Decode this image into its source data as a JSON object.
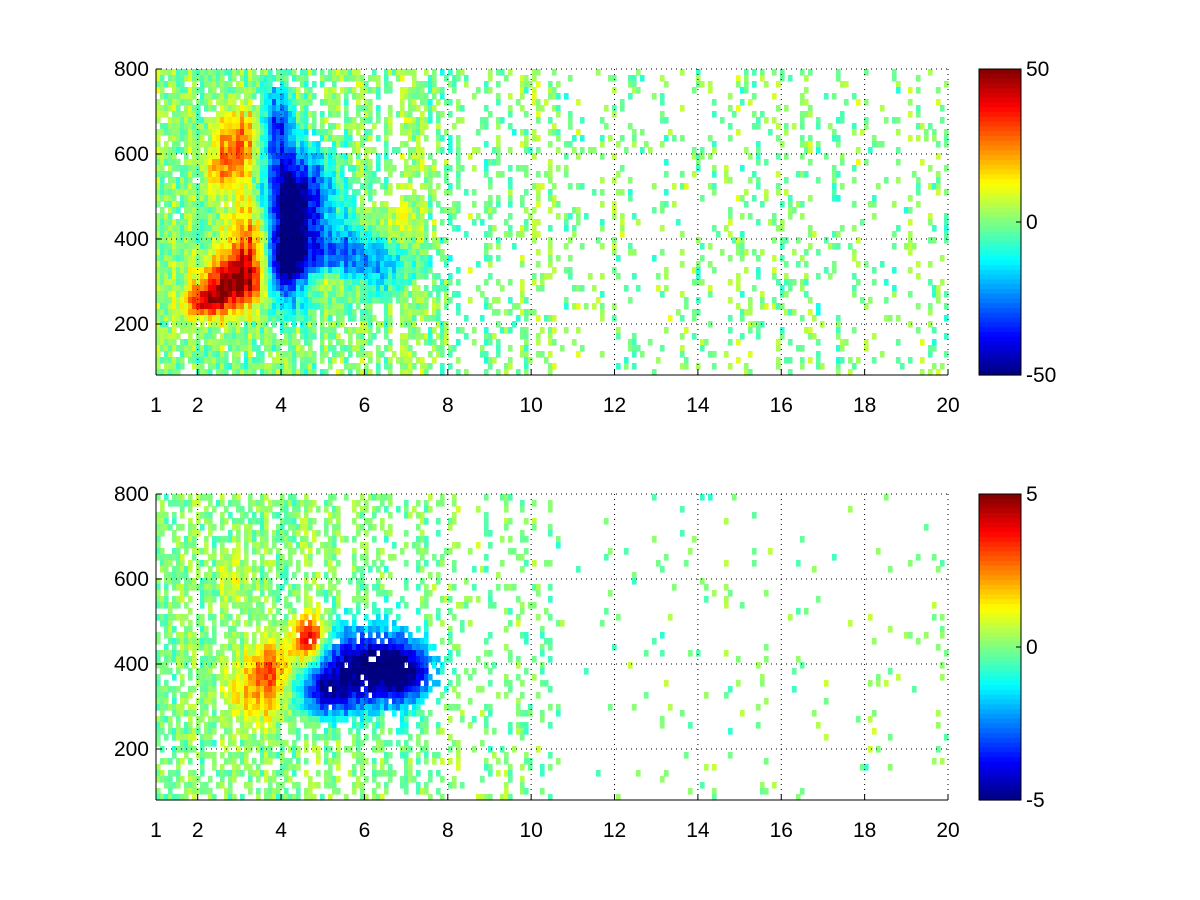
{
  "chart_data": [
    {
      "type": "heatmap",
      "panel": "top",
      "xlim": [
        1,
        20
      ],
      "ylim": [
        80,
        800
      ],
      "x_ticks": [
        1,
        2,
        4,
        6,
        8,
        10,
        12,
        14,
        16,
        18,
        20
      ],
      "y_ticks": [
        200,
        400,
        600,
        800
      ],
      "x_tick_labels": [
        "1",
        "2",
        "4",
        "6",
        "8",
        "10",
        "12",
        "14",
        "16",
        "18",
        "20"
      ],
      "y_tick_labels": [
        "200",
        "400",
        "600",
        "800"
      ],
      "grid": true,
      "grid_style": "dotted",
      "colormap": "jet",
      "colorbar": {
        "range": [
          -50,
          50
        ],
        "ticks": [
          50,
          0,
          -50
        ],
        "tick_labels": [
          "50",
          "0",
          "-50"
        ]
      },
      "blobs": [
        {
          "x": 2.9,
          "y": 300,
          "sx": 0.55,
          "sy": 45,
          "v": 48
        },
        {
          "x": 2.2,
          "y": 250,
          "sx": 0.35,
          "sy": 25,
          "v": 35
        },
        {
          "x": 3.3,
          "y": 400,
          "sx": 0.4,
          "sy": 60,
          "v": 30
        },
        {
          "x": 3.0,
          "y": 630,
          "sx": 0.4,
          "sy": 60,
          "v": 26
        },
        {
          "x": 2.6,
          "y": 560,
          "sx": 0.35,
          "sy": 40,
          "v": 15
        },
        {
          "x": 4.1,
          "y": 330,
          "sx": 0.35,
          "sy": 60,
          "v": -50
        },
        {
          "x": 4.2,
          "y": 470,
          "sx": 0.4,
          "sy": 80,
          "v": -45
        },
        {
          "x": 3.9,
          "y": 660,
          "sx": 0.25,
          "sy": 70,
          "v": -35
        },
        {
          "x": 5.2,
          "y": 350,
          "sx": 0.8,
          "sy": 60,
          "v": -25
        },
        {
          "x": 4.7,
          "y": 520,
          "sx": 0.6,
          "sy": 70,
          "v": -20
        },
        {
          "x": 5.0,
          "y": 300,
          "sx": 0.7,
          "sy": 30,
          "v": 22
        },
        {
          "x": 6.3,
          "y": 350,
          "sx": 0.8,
          "sy": 50,
          "v": -15
        },
        {
          "x": 6.6,
          "y": 420,
          "sx": 0.5,
          "sy": 40,
          "v": 12
        }
      ],
      "noise": {
        "amplitude": 15,
        "fill_density": [
          0.85,
          0.7,
          0.45,
          0.25
        ]
      }
    },
    {
      "type": "heatmap",
      "panel": "bottom",
      "xlim": [
        1,
        20
      ],
      "ylim": [
        80,
        800
      ],
      "x_ticks": [
        1,
        2,
        4,
        6,
        8,
        10,
        12,
        14,
        16,
        18,
        20
      ],
      "y_ticks": [
        200,
        400,
        600,
        800
      ],
      "x_tick_labels": [
        "1",
        "2",
        "4",
        "6",
        "8",
        "10",
        "12",
        "14",
        "16",
        "18",
        "20"
      ],
      "y_tick_labels": [
        "200",
        "400",
        "600",
        "800"
      ],
      "grid": true,
      "grid_style": "dotted",
      "colormap": "jet",
      "colorbar": {
        "range": [
          -5,
          5
        ],
        "ticks": [
          5,
          0,
          -5
        ],
        "tick_labels": [
          "5",
          "0",
          "-5"
        ]
      },
      "blobs": [
        {
          "x": 3.5,
          "y": 330,
          "sx": 0.55,
          "sy": 50,
          "v": 2.0
        },
        {
          "x": 4.7,
          "y": 460,
          "sx": 0.3,
          "sy": 40,
          "v": 4.5
        },
        {
          "x": 3.8,
          "y": 400,
          "sx": 0.4,
          "sy": 40,
          "v": 2.5
        },
        {
          "x": 5.8,
          "y": 400,
          "sx": 0.9,
          "sy": 70,
          "v": -4.0
        },
        {
          "x": 6.9,
          "y": 380,
          "sx": 0.6,
          "sy": 50,
          "v": -4.0
        },
        {
          "x": 5.1,
          "y": 330,
          "sx": 0.5,
          "sy": 40,
          "v": -3.0
        },
        {
          "x": 2.8,
          "y": 600,
          "sx": 0.3,
          "sy": 40,
          "v": 0.8
        }
      ],
      "noise": {
        "amplitude": 1.2,
        "fill_density": [
          0.6,
          0.5,
          0.3,
          0.06
        ]
      }
    }
  ]
}
